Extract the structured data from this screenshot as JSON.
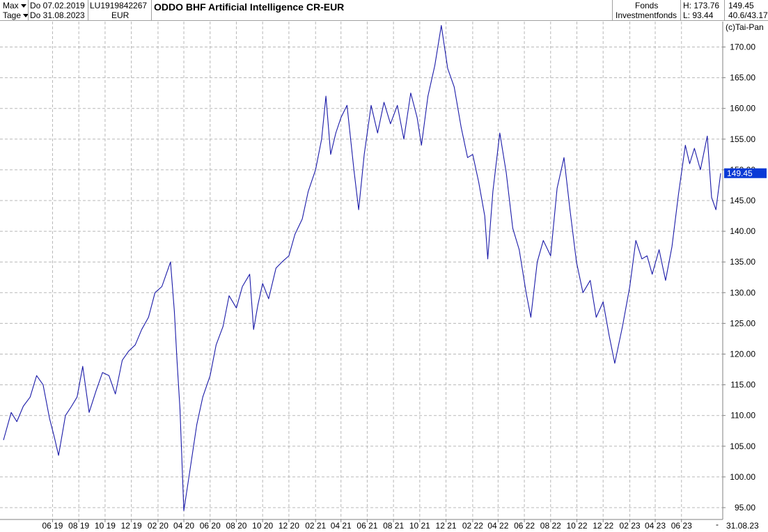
{
  "header": {
    "range_select": "Max",
    "period_select": "Tage",
    "start_date": "Do 07.02.2019",
    "end_date": "Do 31.08.2023",
    "isin": "LU1919842267",
    "currency": "EUR",
    "title": "ODDO BHF Artificial Intelligence CR-EUR",
    "type1": "Fonds",
    "type2": "Investmentfonds",
    "high": "H: 173.76",
    "low": "L: 93.44",
    "last": "149.45",
    "range_info": "40.6/43.17",
    "copyright": "(c)Tai-Pan"
  },
  "colors": {
    "line": "#1a1aa8",
    "last_box": "#0a3ad6",
    "grid": "#b8b8b8",
    "axis": "#808080"
  },
  "chart_data": {
    "type": "line",
    "title": "ODDO BHF Artificial Intelligence CR-EUR",
    "ylim": [
      92,
      175
    ],
    "y_ticks": [
      95,
      100,
      105,
      110,
      115,
      120,
      125,
      130,
      135,
      140,
      145,
      150,
      155,
      160,
      165,
      170
    ],
    "y_tick_labels": [
      "95.00",
      "100.00",
      "105.00",
      "110.00",
      "115.00",
      "120.00",
      "125.00",
      "130.00",
      "135.00",
      "140.00",
      "145.00",
      "150.00",
      "155.00",
      "160.00",
      "165.00",
      "170.00"
    ],
    "x_start": "2019-02-07",
    "x_end": "2023-08-31",
    "x_ticks": [
      "2019-06-01",
      "2019-08-01",
      "2019-10-01",
      "2019-12-01",
      "2020-02-01",
      "2020-04-01",
      "2020-06-01",
      "2020-08-01",
      "2020-10-01",
      "2020-12-01",
      "2021-02-01",
      "2021-04-01",
      "2021-06-01",
      "2021-08-01",
      "2021-10-01",
      "2021-12-01",
      "2022-02-01",
      "2022-04-01",
      "2022-06-01",
      "2022-08-01",
      "2022-10-01",
      "2022-12-01",
      "2023-02-01",
      "2023-04-01",
      "2023-06-01"
    ],
    "x_tick_labels": [
      "06 19",
      "08 19",
      "10 19",
      "12 19",
      "02 20",
      "04 20",
      "06 20",
      "08 20",
      "10 20",
      "12 20",
      "02 21",
      "04 21",
      "06 21",
      "08 21",
      "10 21",
      "12 21",
      "02 22",
      "04 22",
      "06 22",
      "08 22",
      "10 22",
      "12 22",
      "02 23",
      "04 23",
      "06 23"
    ],
    "end_label": "31.08.23",
    "last_value_label": "149.45",
    "grid": true,
    "series": [
      {
        "x": [
          "2019-02-07",
          "2019-02-25",
          "2019-03-10",
          "2019-03-25",
          "2019-04-10",
          "2019-04-25",
          "2019-05-10",
          "2019-05-25",
          "2019-06-05",
          "2019-06-15",
          "2019-07-01",
          "2019-07-15",
          "2019-07-28",
          "2019-08-10",
          "2019-08-25",
          "2019-09-10",
          "2019-09-25",
          "2019-10-10",
          "2019-10-25",
          "2019-11-10",
          "2019-11-25",
          "2019-12-10",
          "2019-12-25",
          "2020-01-10",
          "2020-01-25",
          "2020-02-10",
          "2020-02-20",
          "2020-03-01",
          "2020-03-10",
          "2020-03-16",
          "2020-03-23",
          "2020-04-01",
          "2020-04-15",
          "2020-05-01",
          "2020-05-15",
          "2020-06-01",
          "2020-06-15",
          "2020-07-01",
          "2020-07-15",
          "2020-08-01",
          "2020-08-15",
          "2020-09-01",
          "2020-09-10",
          "2020-09-20",
          "2020-10-01",
          "2020-10-15",
          "2020-11-01",
          "2020-11-15",
          "2020-12-01",
          "2020-12-15",
          "2021-01-01",
          "2021-01-15",
          "2021-02-01",
          "2021-02-15",
          "2021-02-25",
          "2021-03-08",
          "2021-03-20",
          "2021-04-01",
          "2021-04-15",
          "2021-05-01",
          "2021-05-12",
          "2021-05-25",
          "2021-06-10",
          "2021-06-25",
          "2021-07-10",
          "2021-07-25",
          "2021-08-10",
          "2021-08-25",
          "2021-09-10",
          "2021-09-25",
          "2021-10-05",
          "2021-10-20",
          "2021-11-05",
          "2021-11-20",
          "2021-12-05",
          "2021-12-20",
          "2022-01-05",
          "2022-01-20",
          "2022-02-01",
          "2022-02-15",
          "2022-03-01",
          "2022-03-08",
          "2022-03-20",
          "2022-04-05",
          "2022-04-20",
          "2022-05-05",
          "2022-05-20",
          "2022-06-05",
          "2022-06-16",
          "2022-07-01",
          "2022-07-15",
          "2022-08-01",
          "2022-08-16",
          "2022-09-01",
          "2022-09-15",
          "2022-09-30",
          "2022-10-15",
          "2022-11-01",
          "2022-11-15",
          "2022-12-01",
          "2022-12-15",
          "2022-12-28",
          "2023-01-15",
          "2023-02-01",
          "2023-02-15",
          "2023-03-01",
          "2023-03-13",
          "2023-03-25",
          "2023-04-10",
          "2023-04-25",
          "2023-05-10",
          "2023-05-25",
          "2023-06-10",
          "2023-06-20",
          "2023-07-01",
          "2023-07-15",
          "2023-07-31",
          "2023-08-10",
          "2023-08-20",
          "2023-08-31"
        ],
        "values": [
          106.0,
          110.5,
          109.0,
          111.5,
          113.0,
          116.5,
          115.0,
          109.5,
          106.5,
          103.5,
          110.0,
          111.5,
          113.0,
          118.0,
          110.5,
          114.0,
          117.0,
          116.5,
          113.5,
          119.0,
          120.5,
          121.5,
          124.0,
          126.0,
          130.0,
          131.0,
          133.0,
          135.0,
          127.0,
          119.0,
          111.0,
          94.5,
          101.0,
          108.5,
          113.0,
          116.5,
          121.5,
          124.5,
          129.5,
          127.5,
          131.0,
          133.0,
          124.0,
          128.0,
          131.5,
          129.0,
          134.0,
          135.0,
          136.0,
          139.5,
          142.0,
          146.5,
          150.0,
          155.0,
          162.0,
          152.5,
          156.0,
          158.5,
          160.5,
          150.0,
          143.5,
          152.5,
          160.5,
          156.0,
          161.0,
          157.5,
          160.5,
          155.0,
          162.5,
          158.5,
          154.0,
          162.0,
          167.0,
          173.5,
          166.5,
          163.5,
          157.0,
          152.0,
          152.5,
          148.0,
          142.5,
          135.5,
          146.5,
          156.0,
          149.5,
          140.5,
          137.0,
          130.0,
          126.0,
          135.0,
          138.5,
          136.0,
          147.0,
          152.0,
          143.5,
          135.0,
          130.0,
          132.0,
          126.0,
          128.5,
          123.0,
          118.5,
          124.5,
          131.0,
          138.5,
          135.5,
          136.0,
          133.0,
          137.0,
          132.0,
          137.5,
          146.0,
          154.0,
          151.0,
          153.5,
          150.0,
          155.5,
          145.5,
          143.5,
          149.45
        ]
      }
    ]
  }
}
